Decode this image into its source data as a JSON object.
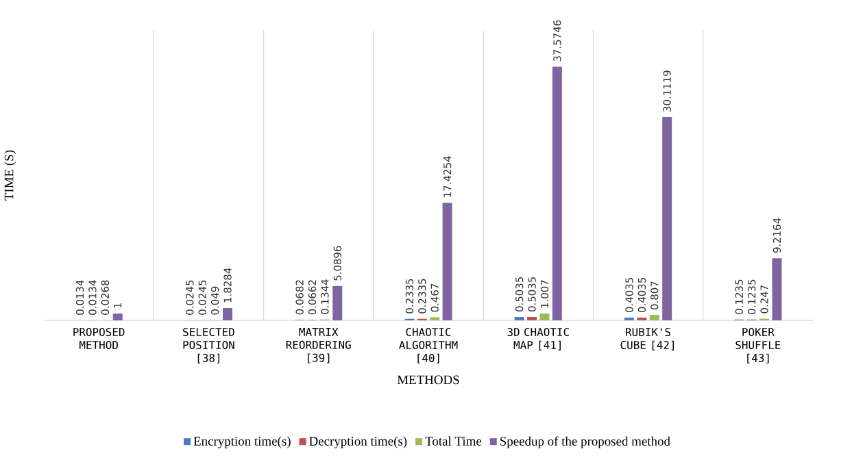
{
  "chart_data": {
    "type": "bar",
    "xlabel": "METHODS",
    "ylabel": "TIME (S)",
    "categories": [
      "PROPOSED METHOD",
      "SELECTED POSITION [38]",
      "MATRIX REORDERING [39]",
      "CHAOTIC ALGORITHM [40]",
      "3D CHAOTIC MAP [41]",
      "RUBIK'S CUBE [42]",
      "POKER SHUFFLE [43]"
    ],
    "series": [
      {
        "name": "Encryption time(s)",
        "color": "#4a7ebb",
        "values": [
          0.0134,
          0.0245,
          0.0682,
          0.2335,
          0.5035,
          0.4035,
          0.1235
        ]
      },
      {
        "name": "Decryption time(s)",
        "color": "#c0504d",
        "values": [
          0.0134,
          0.0245,
          0.0662,
          0.2335,
          0.5035,
          0.4035,
          0.1235
        ]
      },
      {
        "name": "Total Time",
        "color": "#9bbb59",
        "values": [
          0.0268,
          0.049,
          0.1344,
          0.467,
          1.007,
          0.807,
          0.247
        ]
      },
      {
        "name": "Speedup of the proposed method",
        "color": "#8064a2",
        "values": [
          1,
          1.8284,
          5.0896,
          17.4254,
          37.5746,
          30.1119,
          9.2164
        ]
      }
    ],
    "ylim": [
      0,
      43
    ],
    "data_labels": true,
    "grid": "x",
    "legend": "bottom",
    "tick_labels": "x"
  }
}
